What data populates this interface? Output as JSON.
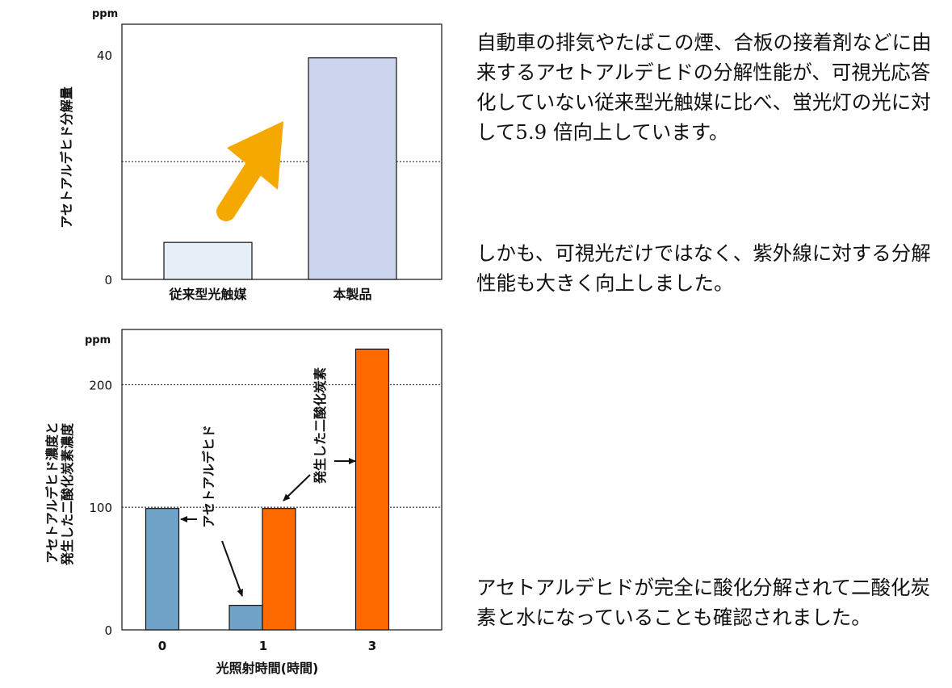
{
  "texts": {
    "paragraph1": "自動車の排気やたばこの煙、合板の接着剤などに由来するアセトアルデヒドの分解性能が、可視光応答化していない従来型光触媒に比べ、蛍光灯の光に対して5.9 倍向上しています。",
    "paragraph2": "しかも、可視光だけではなく、紫外線に対する分解性能も大きく向上しました。",
    "paragraph3": "アセトアルデヒドが完全に酸化分解されて二酸化炭素と水になっていることも確認されました。"
  },
  "chart_data": [
    {
      "type": "bar",
      "unit_label": "ppm",
      "ylabel": "アセトアルデヒド分解量",
      "yticks": [
        0,
        40
      ],
      "ylim": [
        0,
        45.5
      ],
      "reference_line": 21,
      "categories": [
        "従来型光触媒",
        "本製品"
      ],
      "values": [
        6.6,
        39.5
      ],
      "colors": {
        "bar_conventional": "#e6eef8",
        "bar_product": "#cdd4ee",
        "arrow": "#f5a800"
      }
    },
    {
      "type": "bar",
      "unit_label": "ppm",
      "ylabel": [
        "アセトアルデヒド濃度と",
        "発生した二酸化炭素濃度"
      ],
      "xlabel": "光照射時間(時間)",
      "yticks": [
        0,
        100,
        200
      ],
      "ylim": [
        0,
        245
      ],
      "reference_lines": [
        100,
        200
      ],
      "categories": [
        "0",
        "1",
        "3"
      ],
      "series": [
        {
          "name": "アセトアルデヒド",
          "color": "#6fa3c7",
          "values": [
            99,
            20,
            null
          ]
        },
        {
          "name": "発生した二酸化炭素",
          "color": "#ff6a00",
          "values": [
            null,
            99,
            229
          ]
        }
      ]
    }
  ]
}
